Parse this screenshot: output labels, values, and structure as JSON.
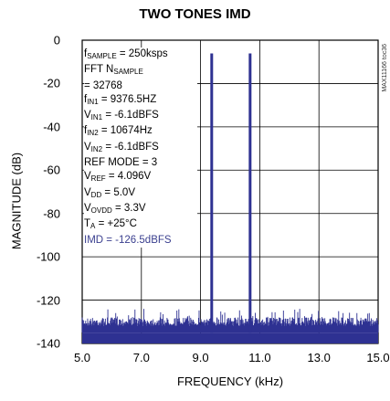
{
  "chart_data": {
    "type": "line",
    "title": "TWO TONES IMD",
    "xlabel": "FREQUENCY (kHz)",
    "ylabel": "MAGNITUDE (dB)",
    "xlim": [
      5.0,
      15.0
    ],
    "ylim": [
      -140,
      0
    ],
    "xticks": [
      "5.0",
      "7.0",
      "9.0",
      "11.0",
      "13.0",
      "15.0"
    ],
    "yticks": [
      "0",
      "-20",
      "-40",
      "-60",
      "-80",
      "-100",
      "-120",
      "-140"
    ],
    "grid": true,
    "series": [
      {
        "color": "#2e3192",
        "noise_floor_db": [
          -135,
          -128
        ],
        "tones": [
          {
            "x": 9.3765,
            "y": -6.1
          },
          {
            "x": 10.674,
            "y": -6.1
          }
        ]
      }
    ],
    "annotation": {
      "lines": [
        {
          "parts": [
            [
              "f",
              ""
            ],
            [
              "SAMPLE",
              "sub"
            ],
            [
              " = 250ksps",
              ""
            ]
          ]
        },
        {
          "parts": [
            [
              "FFT N",
              ""
            ],
            [
              "SAMPLE",
              "sub"
            ]
          ]
        },
        {
          "parts": [
            [
              "= 32768",
              ""
            ]
          ]
        },
        {
          "parts": [
            [
              "f",
              ""
            ],
            [
              "IN1",
              "sub"
            ],
            [
              " = 9376.5HZ",
              ""
            ]
          ]
        },
        {
          "parts": [
            [
              "V",
              ""
            ],
            [
              "IN1",
              "sub"
            ],
            [
              " = -6.1dBFS",
              ""
            ]
          ]
        },
        {
          "parts": [
            [
              "f",
              ""
            ],
            [
              "IN2",
              "sub"
            ],
            [
              " = 10674Hz",
              ""
            ]
          ]
        },
        {
          "parts": [
            [
              "V",
              ""
            ],
            [
              "IN2",
              "sub"
            ],
            [
              " = -6.1dBFS",
              ""
            ]
          ]
        },
        {
          "parts": [
            [
              "REF MODE = 3",
              ""
            ]
          ]
        },
        {
          "parts": [
            [
              "V",
              ""
            ],
            [
              "REF",
              "sub"
            ],
            [
              " = 4.096V",
              ""
            ]
          ]
        },
        {
          "parts": [
            [
              "V",
              ""
            ],
            [
              "DD",
              "sub"
            ],
            [
              " = 5.0V",
              ""
            ]
          ]
        },
        {
          "parts": [
            [
              "V",
              ""
            ],
            [
              "OVDD",
              "sub"
            ],
            [
              " = 3.3V",
              ""
            ]
          ]
        },
        {
          "parts": [
            [
              "T",
              ""
            ],
            [
              "A",
              "sub"
            ],
            [
              " = +25°C",
              ""
            ]
          ]
        },
        {
          "parts": [
            [
              "IMD = -126.5dBFS",
              ""
            ]
          ],
          "highlight": true
        }
      ]
    },
    "side_code": "MAX11166 toc36"
  }
}
